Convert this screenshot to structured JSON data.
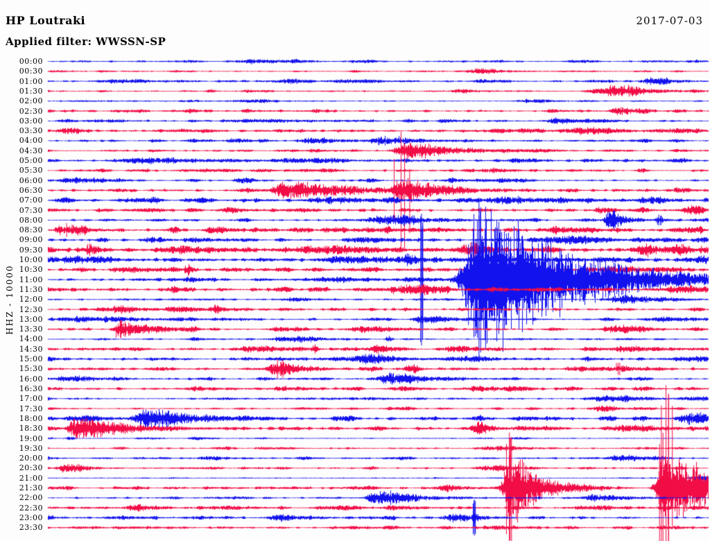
{
  "header": {
    "station": "HP Loutraki",
    "date": "2017-07-03",
    "filter_label": "Applied filter: WWSSN-SP"
  },
  "axis": {
    "y_label": "HHZ - 10000"
  },
  "colors": {
    "trace_blue": "#1212ee",
    "trace_red": "#f20d46",
    "background": "#fdfdfd",
    "text": "#000000"
  },
  "chart_data": {
    "type": "line",
    "subtype": "helicorder-seismogram",
    "station": "HP Loutraki",
    "channel_scale_label": "HHZ - 10000",
    "date": "2017-07-03",
    "filter": "WWSSN-SP",
    "minutes_per_row": 30,
    "row_count": 48,
    "event_field_meaning": {
      "x": "fraction of 30-min row",
      "a": "amplitude px",
      "w": "width px",
      "c": "coda decay px",
      "s": "spike amplitude px"
    },
    "rows": [
      {
        "time": "00:00",
        "color": "blue",
        "noise": 1.0,
        "events": [
          {
            "x": 0.305,
            "a": 2.5,
            "w": 50
          }
        ]
      },
      {
        "time": "00:30",
        "color": "red",
        "noise": 0.7,
        "events": [
          {
            "x": 0.653,
            "a": 3,
            "w": 35
          }
        ]
      },
      {
        "time": "01:00",
        "color": "blue",
        "noise": 1.1,
        "events": [
          {
            "x": 0.105,
            "a": 2,
            "w": 40
          },
          {
            "x": 0.36,
            "a": 2.5,
            "w": 30
          },
          {
            "x": 0.46,
            "a": 2,
            "w": 25
          },
          {
            "x": 0.915,
            "a": 3.5,
            "w": 35
          }
        ]
      },
      {
        "time": "01:30",
        "color": "red",
        "noise": 0.8,
        "events": [
          {
            "x": 0.242,
            "a": 2,
            "w": 10
          },
          {
            "x": 0.62,
            "a": 2.5,
            "w": 25
          },
          {
            "x": 0.851,
            "a": 8,
            "w": 45,
            "c": 40
          }
        ]
      },
      {
        "time": "02:00",
        "color": "blue",
        "noise": 0.6,
        "events": [
          {
            "x": 0.21,
            "a": 1.5,
            "w": 20
          },
          {
            "x": 0.3,
            "a": 2,
            "w": 40
          },
          {
            "x": 0.73,
            "a": 2.5,
            "w": 30
          }
        ]
      },
      {
        "time": "02:30",
        "color": "red",
        "noise": 1.3,
        "events": [
          {
            "x": 0.864,
            "a": 5,
            "w": 22
          }
        ]
      },
      {
        "time": "03:00",
        "color": "blue",
        "noise": 1.0,
        "events": [
          {
            "x": 0.075,
            "a": 2,
            "w": 30
          },
          {
            "x": 0.32,
            "a": 2.5,
            "w": 60
          },
          {
            "x": 0.77,
            "a": 3.5,
            "w": 25
          }
        ]
      },
      {
        "time": "03:30",
        "color": "red",
        "noise": 1.4,
        "events": [
          {
            "x": 0.028,
            "a": 5,
            "w": 14
          },
          {
            "x": 0.8,
            "a": 3,
            "w": 40
          },
          {
            "x": 0.935,
            "a": 3,
            "w": 50
          }
        ]
      },
      {
        "time": "04:00",
        "color": "blue",
        "noise": 1.1,
        "events": [
          {
            "x": 0.278,
            "a": 3,
            "w": 20
          },
          {
            "x": 0.399,
            "a": 3.5,
            "w": 30
          },
          {
            "x": 0.51,
            "a": 4,
            "w": 45,
            "s": 7
          }
        ]
      },
      {
        "time": "04:30",
        "color": "red",
        "noise": 1.0,
        "events": [
          {
            "x": 0.539,
            "a": 11,
            "w": 26,
            "c": 70
          }
        ]
      },
      {
        "time": "05:00",
        "color": "blue",
        "noise": 1.4,
        "events": [
          {
            "x": 0.137,
            "a": 3.5,
            "w": 70
          },
          {
            "x": 0.366,
            "a": 3,
            "w": 60
          },
          {
            "x": 0.71,
            "a": 2.5,
            "w": 25
          }
        ]
      },
      {
        "time": "05:30",
        "color": "red",
        "noise": 1.2,
        "events": [
          {
            "x": 0.655,
            "a": 2.5,
            "w": 30
          }
        ]
      },
      {
        "time": "06:00",
        "color": "blue",
        "noise": 1.2,
        "events": [
          {
            "x": 0.048,
            "a": 3.5,
            "w": 35
          },
          {
            "x": 0.289,
            "a": 3,
            "w": 20
          },
          {
            "x": 0.609,
            "a": 2.5,
            "w": 20
          },
          {
            "x": 0.7,
            "a": 3,
            "w": 25
          }
        ]
      },
      {
        "time": "06:30",
        "color": "red",
        "noise": 1.5,
        "events": [
          {
            "x": 0.357,
            "a": 13,
            "w": 25,
            "c": 85
          },
          {
            "x": 0.534,
            "a": 14,
            "w": 26,
            "c": 45,
            "s": 85
          }
        ]
      },
      {
        "time": "07:00",
        "color": "blue",
        "noise": 2.0,
        "events": [
          {
            "x": 0.42,
            "a": 3,
            "w": 60
          },
          {
            "x": 0.68,
            "a": 3,
            "w": 50
          },
          {
            "x": 0.903,
            "a": 3,
            "w": 25
          }
        ]
      },
      {
        "time": "07:30",
        "color": "red",
        "noise": 1.6,
        "events": [
          {
            "x": 0.273,
            "a": 3,
            "w": 20
          },
          {
            "x": 0.835,
            "a": 4,
            "w": 20
          },
          {
            "x": 0.971,
            "a": 6,
            "w": 20
          }
        ]
      },
      {
        "time": "08:00",
        "color": "blue",
        "noise": 1.2,
        "events": [
          {
            "x": 0.509,
            "a": 7,
            "w": 50
          },
          {
            "x": 0.85,
            "a": 13,
            "w": 14,
            "c": 20
          },
          {
            "x": 0.924,
            "a": 3,
            "w": 8,
            "s": 8
          }
        ]
      },
      {
        "time": "08:30",
        "color": "red",
        "noise": 2.2,
        "events": [
          {
            "x": 0.028,
            "a": 5,
            "w": 30,
            "s": 10
          },
          {
            "x": 0.77,
            "a": 3.5,
            "w": 40
          }
        ]
      },
      {
        "time": "09:00",
        "color": "blue",
        "noise": 1.5,
        "events": [
          {
            "x": 0.155,
            "a": 3,
            "w": 25
          },
          {
            "x": 0.465,
            "a": 3,
            "w": 30
          },
          {
            "x": 0.77,
            "a": 4.5,
            "w": 45
          },
          {
            "x": 0.985,
            "a": 3,
            "w": 15
          }
        ]
      },
      {
        "time": "09:30",
        "color": "red",
        "noise": 2.4,
        "events": [
          {
            "x": 0.063,
            "a": 6,
            "w": 15,
            "s": 9
          },
          {
            "x": 0.4,
            "a": 4,
            "w": 80
          },
          {
            "x": 0.645,
            "a": 5,
            "w": 30,
            "s": 12
          },
          {
            "x": 0.92,
            "a": 4,
            "w": 60
          }
        ]
      },
      {
        "time": "10:00",
        "color": "blue",
        "noise": 2.2,
        "events": [
          {
            "x": 0.05,
            "a": 4,
            "w": 40
          },
          {
            "x": 0.5,
            "a": 4,
            "w": 80
          },
          {
            "x": 0.655,
            "a": 4,
            "w": 50
          },
          {
            "x": 0.987,
            "a": 4.5,
            "w": 15
          }
        ]
      },
      {
        "time": "10:30",
        "color": "red",
        "noise": 1.6,
        "events": [
          {
            "x": 0.116,
            "a": 4,
            "w": 30
          },
          {
            "x": 0.21,
            "a": 9,
            "w": 6
          },
          {
            "x": 0.86,
            "a": 4,
            "w": 40
          }
        ]
      },
      {
        "time": "11:00",
        "color": "blue",
        "noise": 1.5,
        "events": [
          {
            "x": 0.44,
            "a": 3,
            "w": 25
          },
          {
            "x": 0.565,
            "a": 2,
            "w": 5,
            "s": 95
          },
          {
            "x": 0.652,
            "a": 110,
            "w": 40,
            "c": 115,
            "s": 118
          }
        ]
      },
      {
        "time": "11:30",
        "color": "red",
        "noise": 2.2,
        "events": [
          {
            "x": 0.53,
            "a": 4,
            "w": 40
          },
          {
            "x": 0.955,
            "a": 4,
            "w": 40
          }
        ]
      },
      {
        "time": "12:00",
        "color": "blue",
        "noise": 1.0,
        "events": [
          {
            "x": 0.37,
            "a": 3,
            "w": 20
          },
          {
            "x": 0.875,
            "a": 5,
            "w": 55
          }
        ]
      },
      {
        "time": "12:30",
        "color": "red",
        "noise": 1.5,
        "events": [
          {
            "x": 0.1,
            "a": 4.5,
            "w": 35
          },
          {
            "x": 0.252,
            "a": 7,
            "w": 6
          }
        ]
      },
      {
        "time": "13:00",
        "color": "blue",
        "noise": 1.2,
        "events": [
          {
            "x": 0.055,
            "a": 3,
            "w": 80
          },
          {
            "x": 0.565,
            "a": 5.5,
            "w": 28,
            "c": 30
          },
          {
            "x": 0.93,
            "a": 3.5,
            "w": 35
          }
        ]
      },
      {
        "time": "13:30",
        "color": "red",
        "noise": 1.4,
        "events": [
          {
            "x": 0.11,
            "a": 10,
            "w": 18,
            "c": 35,
            "s": 13
          },
          {
            "x": 0.345,
            "a": 3,
            "w": 20
          },
          {
            "x": 0.475,
            "a": 4,
            "w": 35
          },
          {
            "x": 0.855,
            "a": 5,
            "w": 30,
            "c": 30
          }
        ]
      },
      {
        "time": "14:00",
        "color": "blue",
        "noise": 0.9,
        "events": [
          {
            "x": 0.358,
            "a": 4,
            "w": 40
          },
          {
            "x": 0.513,
            "a": 5,
            "w": 4
          }
        ]
      },
      {
        "time": "14:30",
        "color": "red",
        "noise": 1.4,
        "events": [
          {
            "x": 0.315,
            "a": 3,
            "w": 35
          },
          {
            "x": 0.402,
            "a": 6,
            "w": 5
          },
          {
            "x": 0.5,
            "a": 4,
            "w": 20
          },
          {
            "x": 0.614,
            "a": 3.5,
            "w": 30
          },
          {
            "x": 0.87,
            "a": 3.5,
            "w": 35
          }
        ]
      },
      {
        "time": "15:00",
        "color": "blue",
        "noise": 1.3,
        "events": [
          {
            "x": 0.485,
            "a": 4,
            "w": 40
          },
          {
            "x": 0.63,
            "a": 4,
            "w": 30
          },
          {
            "x": 0.975,
            "a": 4,
            "w": 30
          }
        ]
      },
      {
        "time": "15:30",
        "color": "red",
        "noise": 1.3,
        "events": [
          {
            "x": 0.347,
            "a": 9,
            "w": 28,
            "c": 30,
            "s": 14
          },
          {
            "x": 0.55,
            "a": 3.5,
            "w": 12
          },
          {
            "x": 0.8,
            "a": 3,
            "w": 40
          },
          {
            "x": 0.865,
            "a": 3,
            "w": 20,
            "s": 9
          }
        ]
      },
      {
        "time": "16:00",
        "color": "blue",
        "noise": 1.2,
        "events": [
          {
            "x": 0.03,
            "a": 4,
            "w": 40
          },
          {
            "x": 0.515,
            "a": 8,
            "w": 30,
            "c": 45
          }
        ]
      },
      {
        "time": "16:30",
        "color": "red",
        "noise": 1.6,
        "events": [
          {
            "x": 0.65,
            "a": 2.5,
            "w": 25
          }
        ]
      },
      {
        "time": "17:00",
        "color": "blue",
        "noise": 0.9,
        "events": [
          {
            "x": 0.845,
            "a": 4,
            "w": 45
          },
          {
            "x": 0.975,
            "a": 3,
            "w": 25
          }
        ]
      },
      {
        "time": "17:30",
        "color": "red",
        "noise": 1.0,
        "events": [
          {
            "x": 0.838,
            "a": 4,
            "w": 18
          }
        ]
      },
      {
        "time": "18:00",
        "color": "blue",
        "noise": 1.5,
        "events": [
          {
            "x": 0.04,
            "a": 3,
            "w": 30
          },
          {
            "x": 0.152,
            "a": 13,
            "w": 35,
            "c": 50
          },
          {
            "x": 0.971,
            "a": 6,
            "w": 28
          }
        ]
      },
      {
        "time": "18:30",
        "color": "red",
        "noise": 1.5,
        "events": [
          {
            "x": 0.047,
            "a": 16,
            "w": 28,
            "c": 60
          },
          {
            "x": 0.652,
            "a": 7,
            "w": 16
          },
          {
            "x": 0.87,
            "a": 5,
            "w": 35
          }
        ]
      },
      {
        "time": "19:00",
        "color": "blue",
        "noise": 0.6,
        "events": [
          {
            "x": 0.0315,
            "a": 3,
            "w": 6
          },
          {
            "x": 0.22,
            "a": 2,
            "w": 8
          }
        ]
      },
      {
        "time": "19:30",
        "color": "red",
        "noise": 0.9,
        "events": [
          {
            "x": 0.67,
            "a": 3,
            "w": 30
          }
        ]
      },
      {
        "time": "20:00",
        "color": "blue",
        "noise": 1.0,
        "events": [
          {
            "x": 0.239,
            "a": 3,
            "w": 25
          },
          {
            "x": 0.86,
            "a": 4,
            "w": 30
          }
        ]
      },
      {
        "time": "20:30",
        "color": "red",
        "noise": 1.1,
        "events": [
          {
            "x": 0.025,
            "a": 5,
            "w": 22
          },
          {
            "x": 0.665,
            "a": 3.5,
            "w": 30
          }
        ]
      },
      {
        "time": "21:00",
        "color": "blue",
        "noise": 0.6,
        "events": [
          {
            "x": 0.983,
            "a": 4,
            "w": 18
          }
        ]
      },
      {
        "time": "21:30",
        "color": "red",
        "noise": 1.3,
        "events": [
          {
            "x": 0.604,
            "a": 4,
            "w": 20
          },
          {
            "x": 0.698,
            "a": 52,
            "w": 16,
            "c": 35,
            "s": 80
          },
          {
            "x": 0.935,
            "a": 55,
            "w": 25,
            "c": 60,
            "s": 148
          }
        ]
      },
      {
        "time": "22:00",
        "color": "blue",
        "noise": 1.1,
        "events": [
          {
            "x": 0.5,
            "a": 10,
            "w": 28,
            "c": 45
          },
          {
            "x": 0.828,
            "a": 4,
            "w": 30
          }
        ]
      },
      {
        "time": "22:30",
        "color": "red",
        "noise": 1.4,
        "events": [
          {
            "x": 0.13,
            "a": 3,
            "w": 30
          },
          {
            "x": 0.53,
            "a": 2.5,
            "w": 30
          }
        ]
      },
      {
        "time": "23:00",
        "color": "blue",
        "noise": 1.3,
        "events": [
          {
            "x": 0.345,
            "a": 3,
            "w": 30
          },
          {
            "x": 0.61,
            "a": 6,
            "w": 22
          },
          {
            "x": 0.645,
            "a": 8,
            "w": 6,
            "s": 26
          }
        ]
      },
      {
        "time": "23:30",
        "color": "red",
        "noise": 1.2,
        "events": [
          {
            "x": 0.675,
            "a": 3,
            "w": 35
          }
        ]
      }
    ]
  }
}
